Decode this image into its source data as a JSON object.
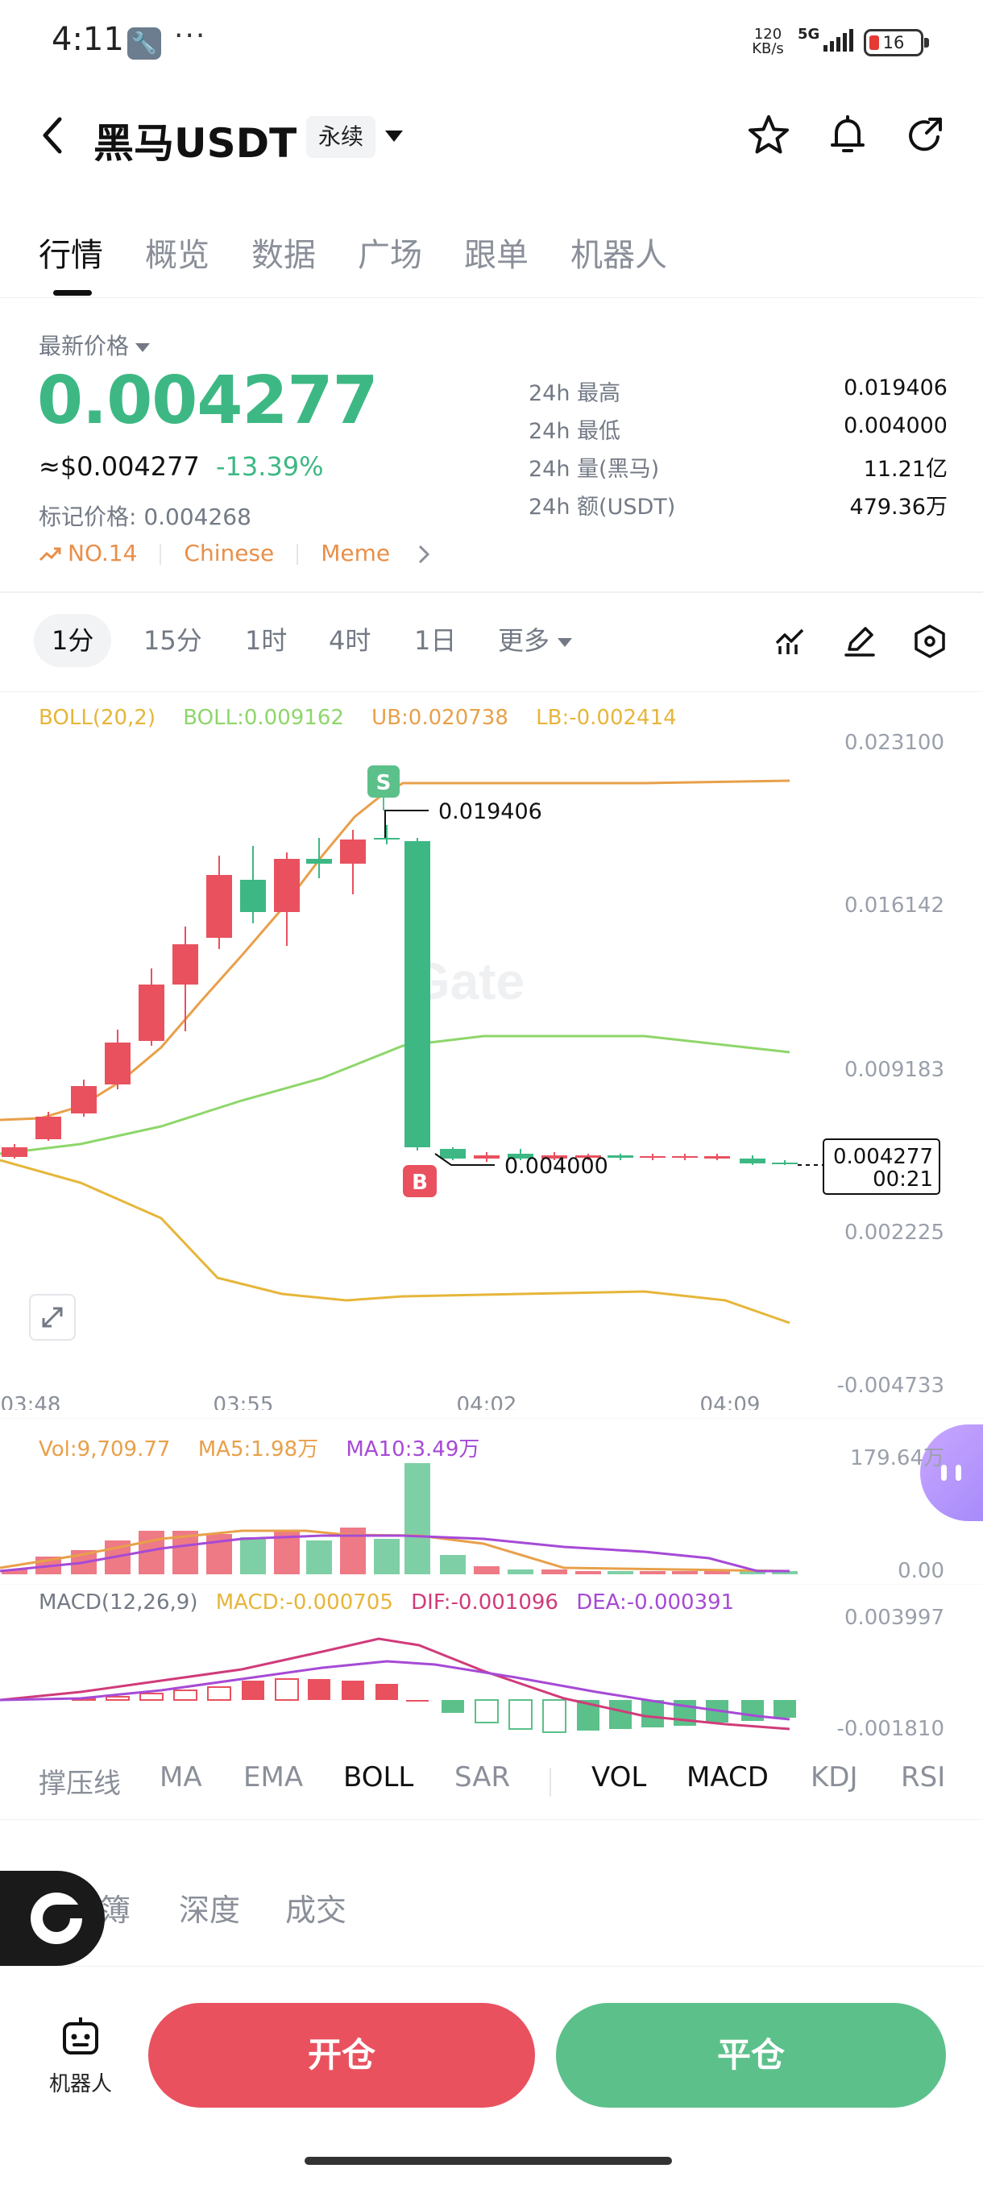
{
  "status_bar": {
    "time": "4:11",
    "dots": "···",
    "speed_top": "120",
    "speed_bottom": "KB/s",
    "network": "5G",
    "battery": "16"
  },
  "header": {
    "title": "黑马USDT",
    "contract_type": "永续"
  },
  "tabs": [
    "行情",
    "概览",
    "数据",
    "广场",
    "跟单",
    "机器人"
  ],
  "ticker": {
    "price_label": "最新价格",
    "last_price": "0.004277",
    "usd_price": "≈$0.004277",
    "change": "-13.39%",
    "mark_price": "标记价格: 0.004268",
    "tags": [
      "NO.14",
      "Chinese",
      "Meme"
    ],
    "stats": [
      {
        "label": "24h  最高",
        "value": "0.019406"
      },
      {
        "label": "24h  最低",
        "value": "0.004000"
      },
      {
        "label": "24h  量(黑马)",
        "value": "11.21亿"
      },
      {
        "label": "24h  额(USDT)",
        "value": "479.36万"
      }
    ]
  },
  "intervals": [
    "1分",
    "15分",
    "1时",
    "4时",
    "1日",
    "更多"
  ],
  "legend": {
    "boll": "BOLL(20,2)",
    "boll_mid": "BOLL:0.009162",
    "ub": "UB:0.020738",
    "lb": "LB:-0.002414",
    "vol": "Vol:9,709.77",
    "ma5": "MA5:1.98万",
    "ma10": "MA10:3.49万",
    "macd_name": "MACD(12,26,9)",
    "macd": "MACD:-0.000705",
    "dif": "DIF:-0.001096",
    "dea": "DEA:-0.000391"
  },
  "chart_labels": {
    "y_ticks": [
      "0.023100",
      "0.016142",
      "0.009183",
      "0.002225",
      "-0.004733"
    ],
    "x_ticks": [
      "03:48",
      "03:55",
      "04:02",
      "04:09"
    ],
    "high_label": "0.019406",
    "low_label": "0.004000",
    "current_price": "0.004277",
    "countdown": "00:21",
    "sell_marker": "S",
    "buy_marker": "B",
    "vol_ticks": [
      "179.64万",
      "0.00"
    ],
    "macd_ticks": [
      "0.003997",
      "-0.001810"
    ],
    "watermark": "Gate"
  },
  "indicator_tabs": [
    "撑压线",
    "MA",
    "EMA",
    "BOLL",
    "SAR",
    "VOL",
    "MACD",
    "KDJ",
    "RSI"
  ],
  "book_tabs": [
    "订单簿",
    "深度",
    "成交"
  ],
  "bottom": {
    "robot_label": "机器人",
    "open_label": "开仓",
    "close_label": "平仓"
  },
  "colors": {
    "up": "#3db884",
    "down": "#e9515f",
    "boll_upper": "#e8a04a",
    "boll_mid": "#8ed66a",
    "boll_lower": "#e6b63a",
    "ma10": "#a64ad6",
    "dif": "#d03b7a"
  }
}
